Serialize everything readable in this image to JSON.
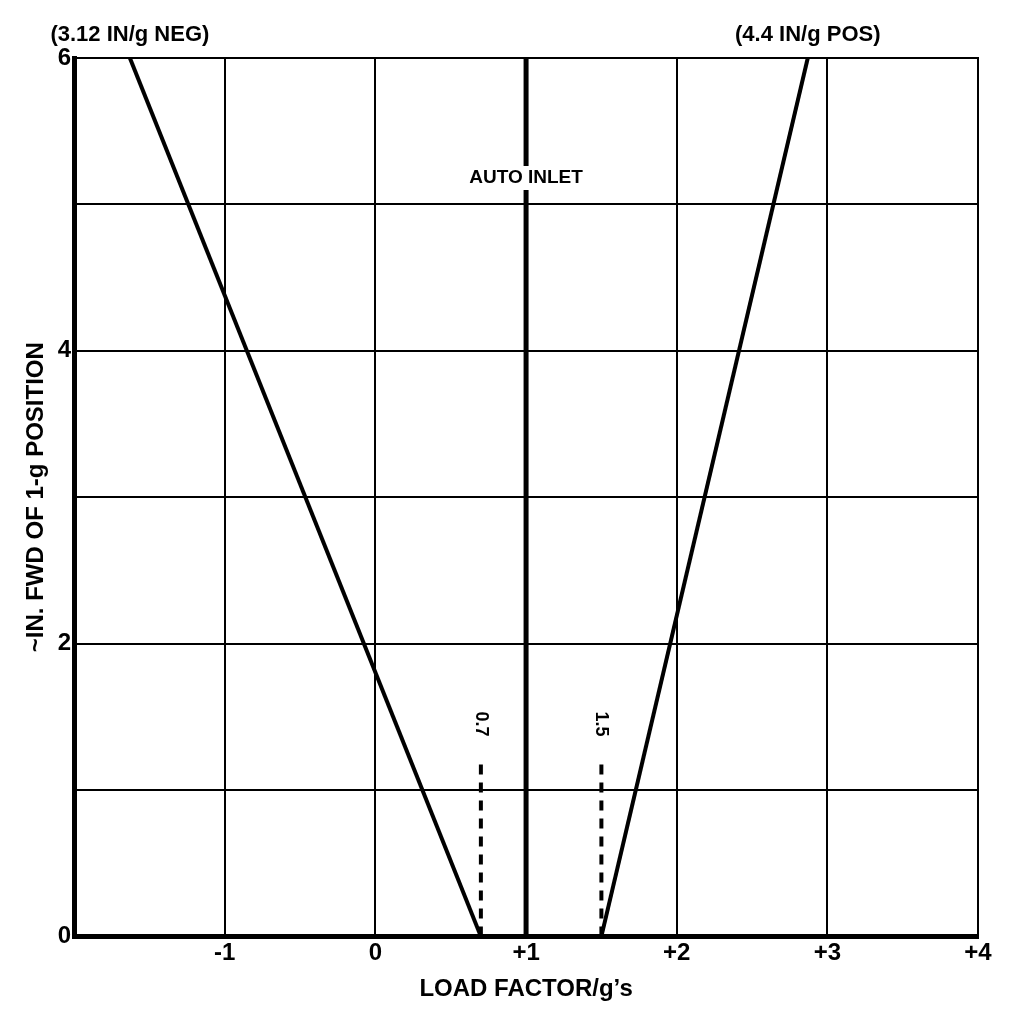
{
  "chart_data": {
    "type": "line",
    "xlabel": "LOAD FACTOR/g’s",
    "ylabel": "~IN. FWD OF 1-g POSITION",
    "xlim": [
      -2,
      4
    ],
    "ylim": [
      0,
      6
    ],
    "xticks": [
      {
        "value": -2,
        "label": null
      },
      {
        "value": -1,
        "label": "-1"
      },
      0,
      {
        "value": 1,
        "label": "+1"
      },
      {
        "value": 2,
        "label": "+2"
      },
      {
        "value": 3,
        "label": "+3"
      },
      {
        "value": 4,
        "label": "+4"
      }
    ],
    "yticks": [
      0,
      {
        "value": 1,
        "label": null
      },
      2,
      {
        "value": 3,
        "label": null
      },
      4,
      {
        "value": 5,
        "label": null
      },
      6
    ],
    "series": [
      {
        "name": "(3.12 IN/g NEG)",
        "color": "#000000",
        "x": [
          0.7,
          -1.63
        ],
        "values": [
          0,
          6
        ]
      },
      {
        "name": "(4.4 IN/g POS)",
        "color": "#000000",
        "x": [
          1.5,
          2.87
        ],
        "values": [
          0,
          6
        ]
      },
      {
        "color": "#000000",
        "x": [
          0.7,
          0.7
        ],
        "values": [
          0,
          1.2
        ],
        "line_style": "dashed"
      },
      {
        "color": "#000000",
        "x": [
          1.5,
          1.5
        ],
        "values": [
          0,
          1.2
        ],
        "line_style": "dashed"
      }
    ],
    "ref_lines": [
      {
        "axis": "x",
        "value": 1,
        "label": "AUTO INLET"
      }
    ],
    "annotations": [
      {
        "text": "0.7",
        "x": 0.7,
        "y": 1.45
      },
      {
        "text": "1.5",
        "x": 1.5,
        "y": 1.45
      }
    ],
    "grid": true,
    "legend": false,
    "marker": "none",
    "line_style": "solid"
  }
}
